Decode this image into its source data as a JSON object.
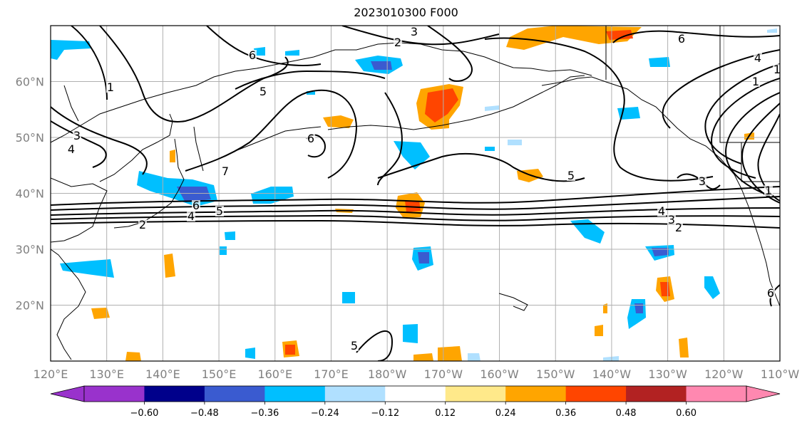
{
  "title": "2023010300 F000",
  "map": {
    "lon_min": 120,
    "lon_max": 250,
    "lat_min": 10,
    "lat_max": 70,
    "lon_ticks": [
      "120°E",
      "130°E",
      "140°E",
      "150°E",
      "160°E",
      "170°E",
      "180°W",
      "170°W",
      "160°W",
      "150°W",
      "140°W",
      "130°W",
      "120°W",
      "110°W"
    ],
    "lat_ticks": [
      "20°N",
      "30°N",
      "40°N",
      "50°N",
      "60°N"
    ],
    "grid": true
  },
  "colorbar": {
    "tick_labels": [
      "−0.60",
      "−0.48",
      "−0.36",
      "−0.24",
      "−0.12",
      "0.12",
      "0.24",
      "0.36",
      "0.48",
      "0.60"
    ],
    "colors": [
      "#9932cc",
      "#00008b",
      "#3a5bd0",
      "#00bfff",
      "#b0e0ff",
      "#ffffff",
      "#ffe98a",
      "#ffa500",
      "#ff4500",
      "#b22222",
      "#ff88b0"
    ],
    "extend": "both"
  },
  "contour_labels": [
    "6",
    "5",
    "4",
    "3",
    "7",
    "6",
    "5",
    "4",
    "3",
    "2",
    "1",
    "5",
    "6",
    "4",
    "1",
    "4",
    "3",
    "2",
    "1",
    "3",
    "6",
    "6",
    "5",
    "2",
    "1"
  ]
}
